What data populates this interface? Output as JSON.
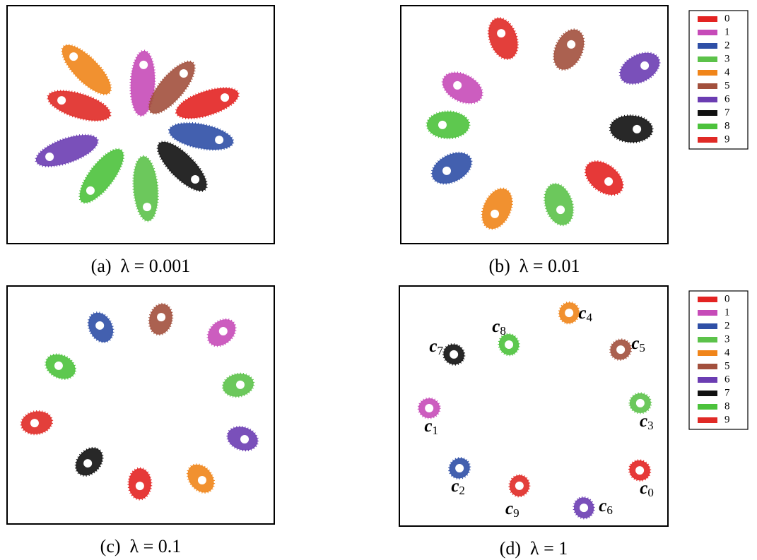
{
  "chart_data": [
    {
      "type": "scatter",
      "caption": "(a)  λ = 0.001",
      "xlim": [
        0,
        100
      ],
      "ylim": [
        0,
        100
      ],
      "legend": false,
      "series": [
        {
          "name": "0",
          "color": "#e32322",
          "x": [
            81.5
          ],
          "y": [
            61.4
          ]
        },
        {
          "name": "1",
          "color": "#c64bb8",
          "x": [
            51.1
          ],
          "y": [
            75.1
          ]
        },
        {
          "name": "2",
          "color": "#2f4fa6",
          "x": [
            79.4
          ],
          "y": [
            43.6
          ]
        },
        {
          "name": "3",
          "color": "#5cc24a",
          "x": [
            52.4
          ],
          "y": [
            15.4
          ]
        },
        {
          "name": "4",
          "color": "#f0851a",
          "x": [
            24.9
          ],
          "y": [
            78.6
          ]
        },
        {
          "name": "5",
          "color": "#a2503d",
          "x": [
            66.1
          ],
          "y": [
            71.5
          ]
        },
        {
          "name": "6",
          "color": "#6b3db2",
          "x": [
            15.9
          ],
          "y": [
            36.5
          ]
        },
        {
          "name": "7",
          "color": "#111111",
          "x": [
            70.4
          ],
          "y": [
            27.0
          ]
        },
        {
          "name": "8",
          "color": "#4cc23c",
          "x": [
            31.2
          ],
          "y": [
            22.3
          ]
        },
        {
          "name": "9",
          "color": "#e02a26",
          "x": [
            20.4
          ],
          "y": [
            60.2
          ]
        }
      ]
    },
    {
      "type": "scatter",
      "caption": "(b)  λ = 0.01",
      "xlim": [
        0,
        100
      ],
      "ylim": [
        0,
        100
      ],
      "legend": "right",
      "series": [
        {
          "name": "0",
          "color": "#e32322",
          "x": [
            77.8
          ],
          "y": [
            26.1
          ]
        },
        {
          "name": "1",
          "color": "#c64bb8",
          "x": [
            21.2
          ],
          "y": [
            66.5
          ]
        },
        {
          "name": "2",
          "color": "#2f4fa6",
          "x": [
            17.2
          ],
          "y": [
            30.6
          ]
        },
        {
          "name": "3",
          "color": "#5cc24a",
          "x": [
            59.8
          ],
          "y": [
            14.2
          ]
        },
        {
          "name": "4",
          "color": "#f0851a",
          "x": [
            35.2
          ],
          "y": [
            12.5
          ]
        },
        {
          "name": "5",
          "color": "#a2503d",
          "x": [
            63.8
          ],
          "y": [
            83.7
          ]
        },
        {
          "name": "6",
          "color": "#6b3db2",
          "x": [
            91.3
          ],
          "y": [
            74.8
          ]
        },
        {
          "name": "7",
          "color": "#111111",
          "x": [
            88.4
          ],
          "y": [
            48.1
          ]
        },
        {
          "name": "8",
          "color": "#4cc23c",
          "x": [
            15.6
          ],
          "y": [
            49.9
          ]
        },
        {
          "name": "9",
          "color": "#e02a26",
          "x": [
            37.6
          ],
          "y": [
            88.4
          ]
        }
      ]
    },
    {
      "type": "scatter",
      "caption": "(c)  λ = 0.1",
      "xlim": [
        0,
        100
      ],
      "ylim": [
        0,
        100
      ],
      "legend": false,
      "series": [
        {
          "name": "0",
          "color": "#e32322",
          "x": [
            49.7
          ],
          "y": [
            16.0
          ]
        },
        {
          "name": "1",
          "color": "#c64bb8",
          "x": [
            80.9
          ],
          "y": [
            81.0
          ]
        },
        {
          "name": "2",
          "color": "#2f4fa6",
          "x": [
            34.7
          ],
          "y": [
            83.4
          ]
        },
        {
          "name": "3",
          "color": "#5cc24a",
          "x": [
            87.3
          ],
          "y": [
            58.5
          ]
        },
        {
          "name": "4",
          "color": "#f0851a",
          "x": [
            73.0
          ],
          "y": [
            18.4
          ]
        },
        {
          "name": "5",
          "color": "#a2503d",
          "x": [
            57.7
          ],
          "y": [
            86.9
          ]
        },
        {
          "name": "6",
          "color": "#6b3db2",
          "x": [
            88.9
          ],
          "y": [
            35.6
          ]
        },
        {
          "name": "7",
          "color": "#111111",
          "x": [
            30.2
          ],
          "y": [
            25.5
          ]
        },
        {
          "name": "8",
          "color": "#4cc23c",
          "x": [
            19.3
          ],
          "y": [
            66.5
          ]
        },
        {
          "name": "9",
          "color": "#e02a26",
          "x": [
            10.3
          ],
          "y": [
            42.4
          ]
        }
      ]
    },
    {
      "type": "scatter",
      "caption": "(d)  λ = 1",
      "xlim": [
        0,
        100
      ],
      "ylim": [
        0,
        100
      ],
      "legend": "right",
      "series": [
        {
          "name": "0",
          "color": "#e32322",
          "x": [
            89.5
          ],
          "y": [
            23.2
          ],
          "center_label": {
            "symbol": "c",
            "index": "0"
          }
        },
        {
          "name": "1",
          "color": "#c64bb8",
          "x": [
            11.1
          ],
          "y": [
            49.1
          ],
          "center_label": {
            "symbol": "c",
            "index": "1"
          }
        },
        {
          "name": "2",
          "color": "#2f4fa6",
          "x": [
            22.4
          ],
          "y": [
            24.1
          ],
          "center_label": {
            "symbol": "c",
            "index": "2"
          }
        },
        {
          "name": "3",
          "color": "#5cc24a",
          "x": [
            89.7
          ],
          "y": [
            51.2
          ],
          "center_label": {
            "symbol": "c",
            "index": "3"
          }
        },
        {
          "name": "4",
          "color": "#f0851a",
          "x": [
            63.2
          ],
          "y": [
            88.8
          ],
          "center_label": {
            "symbol": "c",
            "index": "4"
          }
        },
        {
          "name": "5",
          "color": "#a2503d",
          "x": [
            82.4
          ],
          "y": [
            73.5
          ],
          "center_label": {
            "symbol": "c",
            "index": "5"
          }
        },
        {
          "name": "6",
          "color": "#6b3db2",
          "x": [
            68.7
          ],
          "y": [
            7.6
          ],
          "center_label": {
            "symbol": "c",
            "index": "6"
          }
        },
        {
          "name": "7",
          "color": "#111111",
          "x": [
            20.3
          ],
          "y": [
            71.5
          ],
          "center_label": {
            "symbol": "c",
            "index": "7"
          }
        },
        {
          "name": "8",
          "color": "#4cc23c",
          "x": [
            40.8
          ],
          "y": [
            75.6
          ],
          "center_label": {
            "symbol": "c",
            "index": "8"
          }
        },
        {
          "name": "9",
          "color": "#e02a26",
          "x": [
            44.7
          ],
          "y": [
            16.8
          ],
          "center_label": {
            "symbol": "c",
            "index": "9"
          }
        }
      ]
    }
  ]
}
